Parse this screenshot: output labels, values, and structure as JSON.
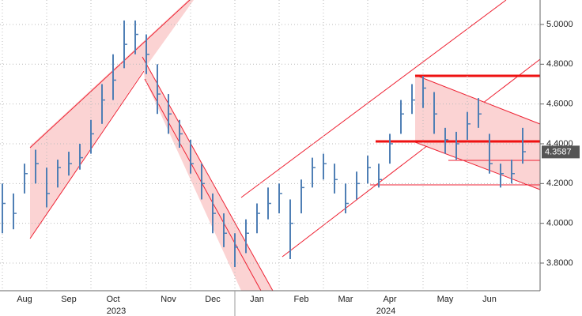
{
  "chart_data": {
    "type": "ohlc",
    "color": "#4f7fb5",
    "categories": [
      null,
      null,
      "Aug",
      null,
      null,
      null,
      "Sep",
      null,
      null,
      null,
      "Oct",
      null,
      null,
      null,
      null,
      "Nov",
      null,
      null,
      null,
      "Dec",
      null,
      null,
      null,
      "Jan",
      null,
      null,
      null,
      "Feb",
      null,
      null,
      null,
      "Mar",
      null,
      null,
      null,
      "Apr",
      null,
      null,
      null,
      null,
      "May",
      null,
      null,
      null,
      "Jun",
      null,
      null,
      null
    ],
    "values": [
      4.1,
      4.05,
      4.25,
      4.3,
      4.15,
      4.28,
      4.3,
      4.33,
      4.45,
      4.62,
      4.72,
      4.9,
      4.95,
      4.85,
      4.65,
      4.55,
      4.45,
      4.3,
      4.2,
      4.05,
      3.95,
      3.88,
      3.95,
      4.05,
      4.1,
      4.15,
      4.0,
      4.18,
      4.28,
      4.3,
      4.22,
      4.1,
      4.2,
      4.28,
      4.22,
      4.4,
      4.55,
      4.62,
      4.68,
      4.55,
      4.42,
      4.4,
      4.5,
      4.55,
      4.3,
      4.25,
      4.25,
      4.36
    ],
    "highs": [
      4.2,
      4.15,
      4.3,
      4.37,
      4.28,
      4.32,
      4.36,
      4.4,
      4.52,
      4.7,
      4.85,
      5.02,
      5.02,
      4.95,
      4.8,
      4.65,
      4.52,
      4.42,
      4.3,
      4.15,
      4.05,
      3.95,
      4.02,
      4.1,
      4.18,
      4.2,
      4.12,
      4.22,
      4.33,
      4.35,
      4.3,
      4.2,
      4.26,
      4.34,
      4.3,
      4.45,
      4.62,
      4.7,
      4.74,
      4.66,
      4.48,
      4.46,
      4.56,
      4.63,
      4.45,
      4.3,
      4.32,
      4.48
    ],
    "lows": [
      3.95,
      3.97,
      4.15,
      4.2,
      4.08,
      4.18,
      4.24,
      4.27,
      4.35,
      4.5,
      4.62,
      4.78,
      4.85,
      4.75,
      4.55,
      4.45,
      4.38,
      4.25,
      4.12,
      3.95,
      3.88,
      3.78,
      3.85,
      3.95,
      4.02,
      4.05,
      3.82,
      4.05,
      4.18,
      4.22,
      4.15,
      4.05,
      4.12,
      4.2,
      4.18,
      4.3,
      4.45,
      4.55,
      4.58,
      4.45,
      4.35,
      4.32,
      4.42,
      4.48,
      4.25,
      4.18,
      4.2,
      4.3
    ],
    "year_labels": [
      "2023",
      "2024"
    ],
    "last_price": 4.3587,
    "ylim": [
      3.661,
      5.123
    ],
    "yticks": [
      {
        "value": 3.8,
        "label": "3.8000"
      },
      {
        "value": 4.0,
        "label": "4.0000"
      },
      {
        "value": 4.2,
        "label": "4.2000"
      },
      {
        "value": 4.4,
        "label": "4.4000"
      },
      {
        "value": 4.6,
        "label": "4.6000"
      },
      {
        "value": 4.8,
        "label": "4.8000"
      },
      {
        "value": 5.0,
        "label": "5.0000"
      }
    ],
    "grid": true
  }
}
